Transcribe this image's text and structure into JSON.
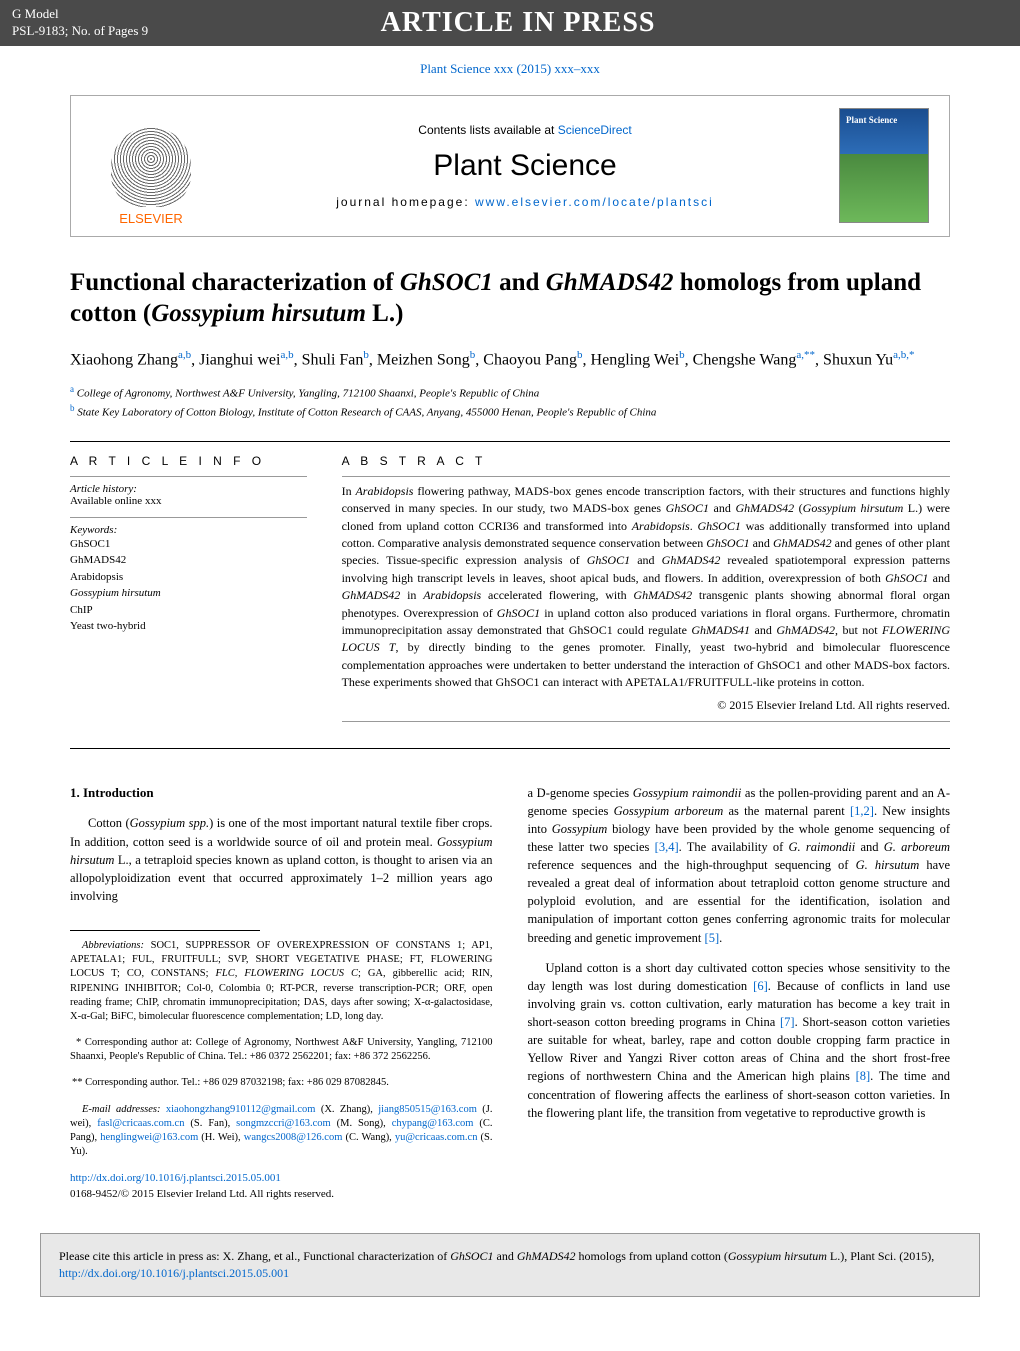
{
  "gmodel": {
    "label": "G Model",
    "ref": "PSL-9183;   No. of Pages 9",
    "banner": "ARTICLE IN PRESS"
  },
  "citation_link": "Plant Science xxx (2015) xxx–xxx",
  "journal_box": {
    "elsevier": "ELSEVIER",
    "contents_prefix": "Contents lists available at ",
    "contents_link": "ScienceDirect",
    "journal_name": "Plant Science",
    "homepage_label": "journal homepage: ",
    "homepage_url": "www.elsevier.com/locate/plantsci",
    "cover_text": "Plant Science"
  },
  "title_parts": {
    "p1": "Functional characterization of ",
    "i1": "GhSOC1",
    "p2": " and ",
    "i2": "GhMADS42",
    "p3": " homologs from upland cotton (",
    "i3": "Gossypium hirsutum",
    "p4": " L.)"
  },
  "authors_html": "Xiaohong Zhang<sup class='sup'>a,b</sup>, Jianghui wei<sup class='sup'>a,b</sup>, Shuli Fan<sup class='sup'>b</sup>, Meizhen Song<sup class='sup'>b</sup>, Chaoyou Pang<sup class='sup'>b</sup>, Hengling Wei<sup class='sup'>b</sup>, Chengshe Wang<sup class='sup'>a,**</sup>, Shuxun Yu<sup class='sup'>a,b,*</sup>",
  "affiliations": {
    "a": "College of Agronomy, Northwest A&F University, Yangling, 712100 Shaanxi, People's Republic of China",
    "b": "State Key Laboratory of Cotton Biology, Institute of Cotton Research of CAAS, Anyang, 455000 Henan, People's Republic of China"
  },
  "article_info": {
    "heading": "A R T I C L E    I N F O",
    "history_label": "Article history:",
    "history_value": "Available online xxx",
    "keywords_label": "Keywords:",
    "keywords": [
      "GhSOC1",
      "GhMADS42",
      "Arabidopsis",
      "Gossypium hirsutum",
      "ChIP",
      "Yeast two-hybrid"
    ]
  },
  "abstract": {
    "heading": "A B S T R A C T",
    "text_html": "In <em>Arabidopsis</em> flowering pathway, MADS-box genes encode transcription factors, with their structures and functions highly conserved in many species. In our study, two MADS-box genes <em>GhSOC1</em> and <em>GhMADS42</em> (<em>Gossypium hirsutum</em> L.) were cloned from upland cotton CCRI36 and transformed into <em>Arabidopsis</em>. <em>GhSOC1</em> was additionally transformed into upland cotton. Comparative analysis demonstrated sequence conservation between <em>GhSOC1</em> and <em>GhMADS42</em> and genes of other plant species. Tissue-specific expression analysis of <em>GhSOC1</em> and <em>GhMADS42</em> revealed spatiotemporal expression patterns involving high transcript levels in leaves, shoot apical buds, and flowers. In addition, overexpression of both <em>GhSOC1</em> and <em>GhMADS42</em> in <em>Arabidopsis</em> accelerated flowering, with <em>GhMADS42</em> transgenic plants showing abnormal floral organ phenotypes. Overexpression of <em>GhSOC1</em> in upland cotton also produced variations in floral organs. Furthermore, chromatin immunoprecipitation assay demonstrated that GhSOC1 could regulate <em>GhMADS41</em> and <em>GhMADS42</em>, but not <em>FLOWERING LOCUS T</em>, by directly binding to the genes promoter. Finally, yeast two-hybrid and bimolecular fluorescence complementation approaches were undertaken to better understand the interaction of GhSOC1 and other MADS-box factors. These experiments showed that GhSOC1 can interact with APETALA1/FRUITFULL-like proteins in cotton.",
    "copyright": "© 2015 Elsevier Ireland Ltd. All rights reserved."
  },
  "intro": {
    "heading": "1.  Introduction",
    "left_p1_html": "Cotton (<em>Gossypium spp.</em>) is one of the most important natural textile fiber crops. In addition, cotton seed is a worldwide source of oil and protein meal. <em>Gossypium hirsutum</em> L., a tetraploid species known as upland cotton, is thought to arisen via an allopolyploidization event that occurred approximately 1–2 million years ago involving",
    "right_p1_html": "a D-genome species <em>Gossypium raimondii</em> as the pollen-providing parent and an A-genome species <em>Gossypium arboreum</em> as the maternal parent <a class='ref-link'>[1,2]</a>. New insights into <em>Gossypium</em> biology have been provided by the whole genome sequencing of these latter two species <a class='ref-link'>[3,4]</a>. The availability of <em>G. raimondii</em> and <em>G. arboreum</em> reference sequences and the high-throughput sequencing of <em>G. hirsutum</em> have revealed a great deal of information about tetraploid cotton genome structure and polyploid evolution, and are essential for the identification, isolation and manipulation of important cotton genes conferring agronomic traits for molecular breeding and genetic improvement <a class='ref-link'>[5]</a>.",
    "right_p2_html": "Upland cotton is a short day cultivated cotton species whose sensitivity to the day length was lost during domestication <a class='ref-link'>[6]</a>. Because of conflicts in land use involving grain vs. cotton cultivation, early maturation has become a key trait in short-season cotton breeding programs in China <a class='ref-link'>[7]</a>. Short-season cotton varieties are suitable for wheat, barley, rape and cotton double cropping farm practice in Yellow River and Yangzi River cotton areas of China and the short frost-free regions of northwestern China and the American high plains <a class='ref-link'>[8]</a>. The time and concentration of flowering affects the earliness of short-season cotton varieties. In the flowering plant life, the transition from vegetative to reproductive growth is"
  },
  "footnotes": {
    "abbrev_html": "<em>Abbreviations:</em> SOC1, SUPPRESSOR OF OVEREXPRESSION OF CONSTANS 1; AP1, APETALA1; FUL, FRUITFULL; SVP, SHORT VEGETATIVE PHASE; FT, FLOWERING LOCUS T; CO, CONSTANS; <em>FLC, FLOWERING LOCUS C</em>; GA, gibberellic acid; RIN, RIPENING INHIBITOR; Col-0, Colombia 0; RT-PCR, reverse transcription-PCR; ORF, open reading frame; ChIP, chromatin immunoprecipitation; DAS, days after sowing; X-α-galactosidase, X-α-Gal; BiFC, bimolecular fluorescence complementation; LD, long day.",
    "corr1": "* Corresponding author at: College of Agronomy, Northwest A&F University, Yangling, 712100 Shaanxi, People's Republic of China. Tel.: +86 0372 2562201; fax: +86 372 2562256.",
    "corr2": "** Corresponding author. Tel.: +86 029 87032198; fax: +86 029 87082845.",
    "emails_html": "<em>E-mail addresses:</em> <a>xiaohongzhang910112@gmail.com</a> (X. Zhang), <a>jiang850515@163.com</a> (J. wei), <a>fasl@cricaas.com.cn</a> (S. Fan), <a>songmzccri@163.com</a> (M. Song), <a>chypang@163.com</a> (C. Pang), <a>henglingwei@163.com</a> (H. Wei), <a>wangcs2008@126.com</a> (C. Wang), <a>yu@cricaas.com.cn</a> (S. Yu)."
  },
  "doi": {
    "link": "http://dx.doi.org/10.1016/j.plantsci.2015.05.001",
    "issn": "0168-9452/© 2015 Elsevier Ireland Ltd. All rights reserved."
  },
  "bottom_cite_html": "Please cite this article in press as: X. Zhang, et al., Functional characterization of <em>GhSOC1</em> and <em>GhMADS42</em> homologs from upland cotton (<em>Gossypium hirsutum</em> L.), Plant Sci. (2015), <a>http://dx.doi.org/10.1016/j.plantsci.2015.05.001</a>"
}
